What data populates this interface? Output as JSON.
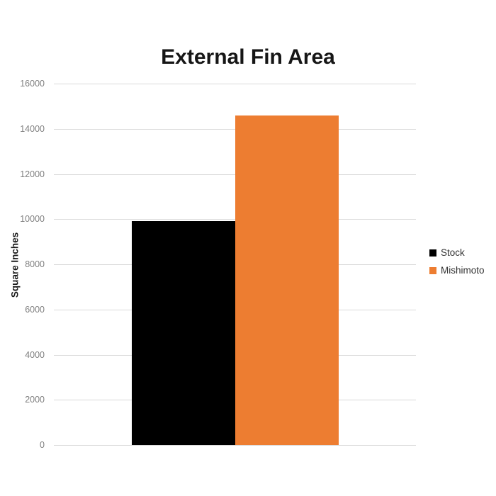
{
  "chart_data": {
    "type": "bar",
    "title": "External Fin Area",
    "ylabel": "Square Inches",
    "xlabel": "",
    "categories": [
      ""
    ],
    "series": [
      {
        "name": "Stock",
        "color": "#000000",
        "values": [
          9900
        ]
      },
      {
        "name": "Mishimoto",
        "color": "#ED7D31",
        "values": [
          14600
        ]
      }
    ],
    "ylim": [
      0,
      16000
    ],
    "ytick_step": 2000,
    "grid": true,
    "legend_position": "right",
    "colors": {
      "gridline": "#d9d9d9",
      "tick_text": "#7f7f7f",
      "title_text": "#161616",
      "legend_text": "#333333",
      "background": "#ffffff"
    }
  }
}
